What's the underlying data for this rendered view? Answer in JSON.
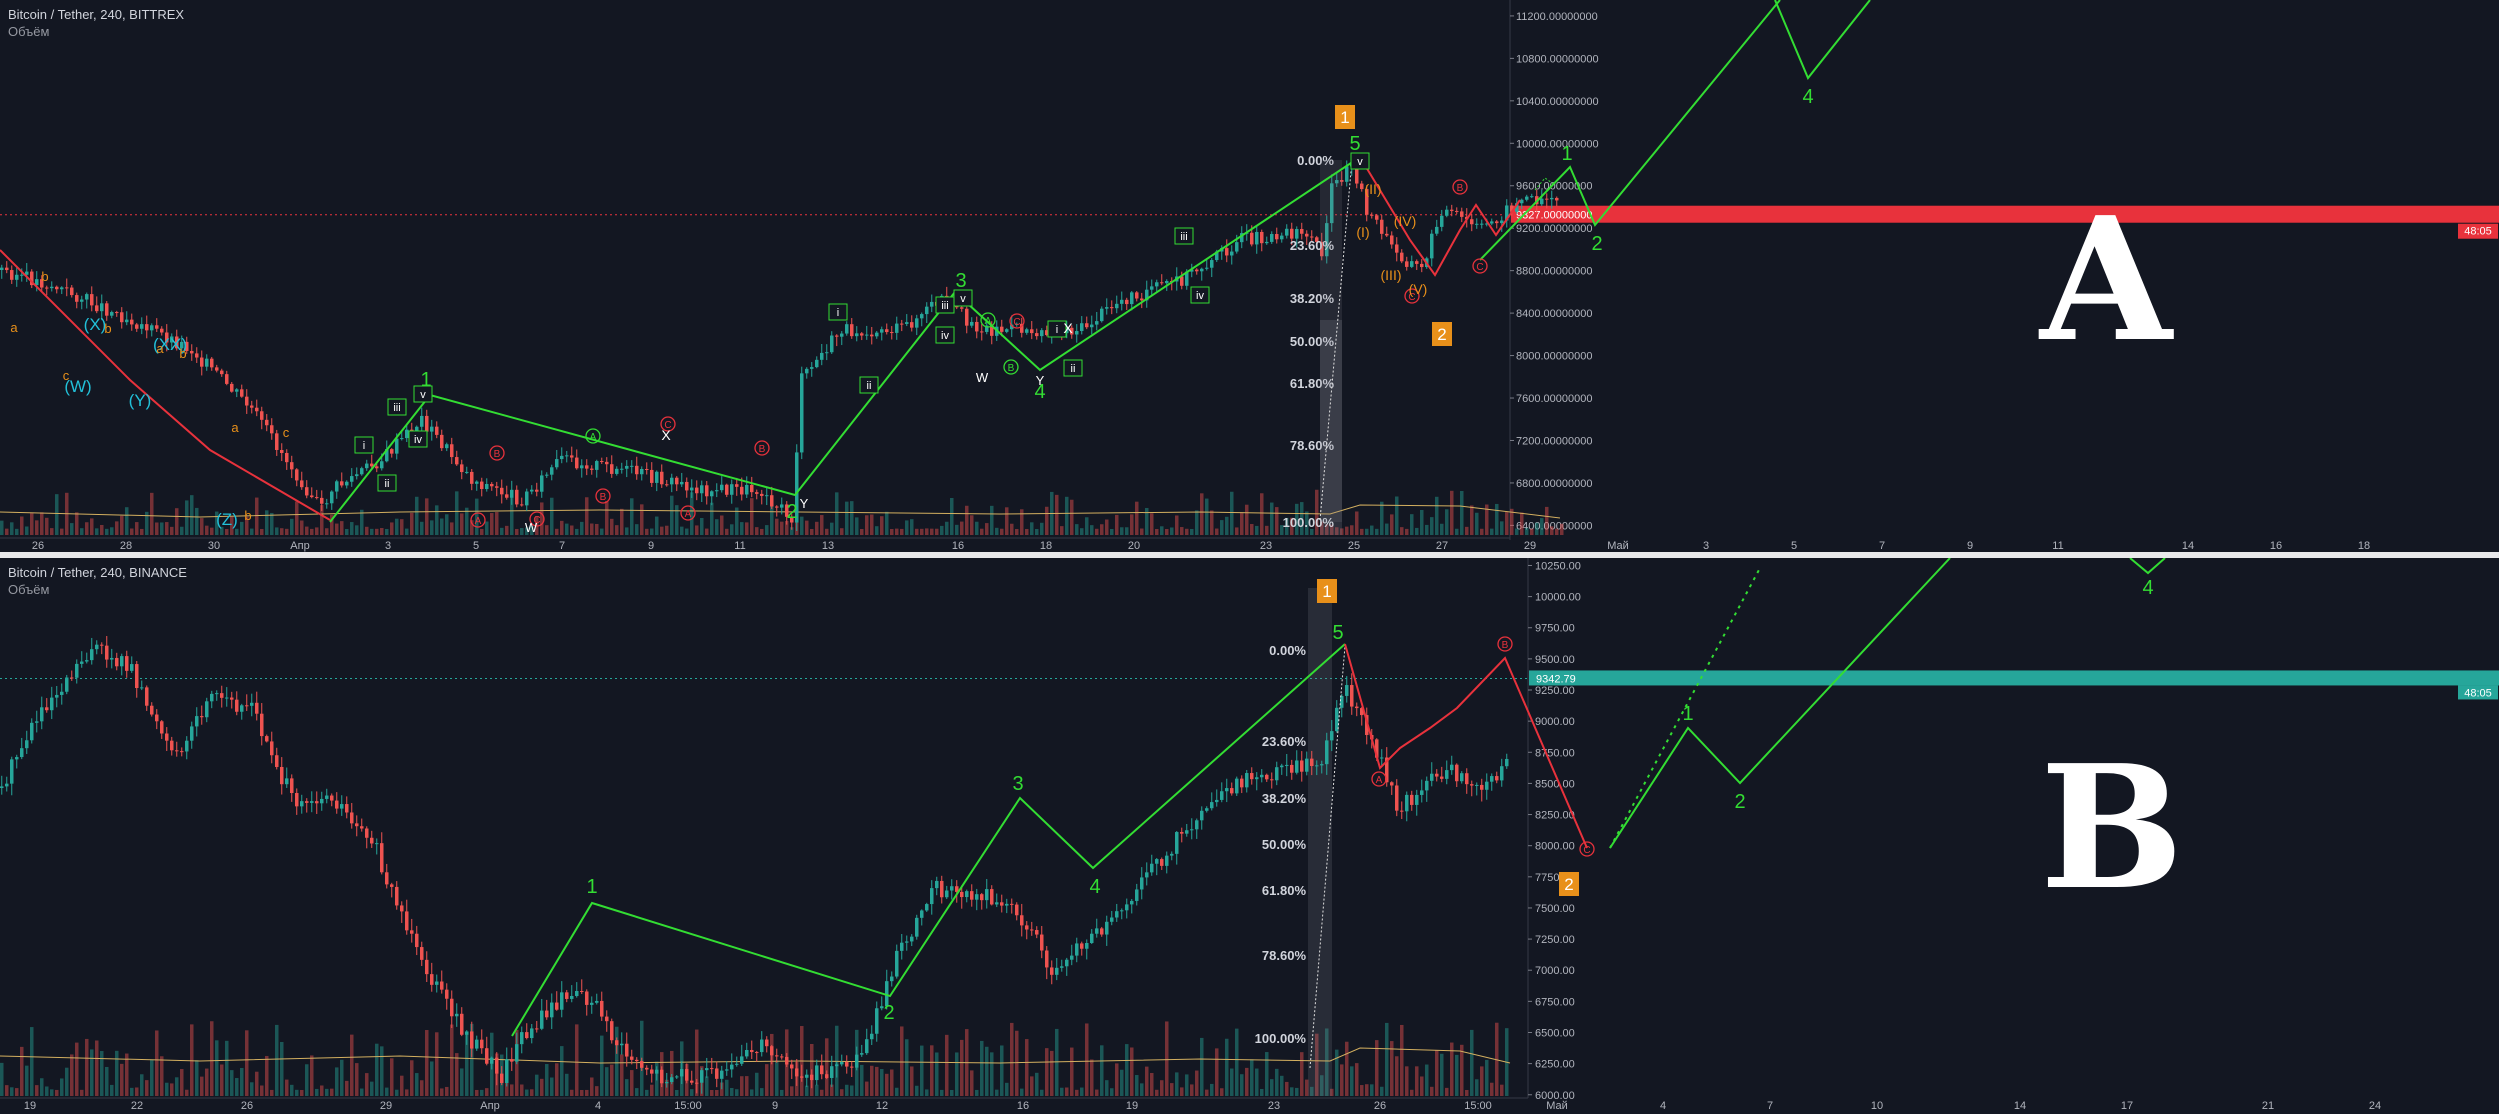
{
  "colors": {
    "background": "#131722",
    "up_candle": "#26a69a",
    "down_candle": "#ef5350",
    "wave_green": "#33dd33",
    "wave_red": "#e8323c",
    "wave_orange": "#e8901a",
    "wave_cyan": "#22c0d8",
    "ma_line": "#d4b060",
    "fib_label": "#d1d4dc",
    "box_orange": "#e8901a"
  },
  "charts": [
    {
      "id": "A",
      "legend_symbol": "Bitcoin / Tether, 240, BITTREX",
      "legend_volume": "Объём",
      "big_label": "A",
      "price_axis": [
        "11200.00000000",
        "10800.00000000",
        "10400.00000000",
        "10000.00000000",
        "9600.00000000",
        "9200.00000000",
        "8800.00000000",
        "8400.00000000",
        "8000.00000000",
        "7600.00000000",
        "7200.00000000",
        "6800.00000000",
        "6400.00000000"
      ],
      "last_price": "9327.00000000",
      "last_price_sub": "48:05",
      "time_axis": [
        "26",
        "28",
        "30",
        "Апр",
        "3",
        "5",
        "7",
        "9",
        "11",
        "13",
        "16",
        "18",
        "20",
        "23",
        "25",
        "27",
        "29",
        "Май",
        "3",
        "5",
        "7",
        "9",
        "11",
        "14",
        "16",
        "18"
      ],
      "fib_levels": [
        "0.00%",
        "23.60%",
        "38.20%",
        "50.00%",
        "61.80%",
        "78.60%",
        "100.00%"
      ],
      "wave_labels": {
        "impulse_1_box": "1",
        "correction_2_box": "2",
        "w1": "1",
        "w2": "2",
        "w3": "3",
        "w4": "4",
        "w5": "5",
        "proj_1": "1",
        "proj_2": "2",
        "proj_4": "4",
        "sub_i": "i",
        "sub_ii": "ii",
        "sub_iii": "iii",
        "sub_iv": "iv",
        "sub_v": "v",
        "cyan_X": "(X)",
        "cyan_XX": "(XX)",
        "cyan_W": "(W)",
        "cyan_Y": "(Y)",
        "cyan_Z": "(Z)",
        "orange_I": "(I)",
        "orange_II": "(II)",
        "orange_III": "(III)",
        "orange_IV": "(IV)",
        "orange_V": "(V)",
        "circ_A": "A",
        "circ_B": "B",
        "circ_C": "C",
        "W": "W",
        "X": "X",
        "Y": "Y",
        "sub_a": "a",
        "sub_b": "b",
        "sub_c": "c"
      },
      "chart_data": {
        "type": "candlestick",
        "symbol": "Bitcoin / Tether",
        "interval": "240",
        "exchange": "BITTREX",
        "ylim": [
          6300,
          11350
        ],
        "y_scale": "linear",
        "grid": false,
        "price_line": 9327,
        "trend_path": [
          {
            "x": "Mar 24",
            "y": 8850
          },
          {
            "x": "Apr 1",
            "y": 6450
          },
          {
            "x": "Apr 4",
            "y": 7580
          },
          {
            "x": "Apr 12",
            "y": 6650
          },
          {
            "x": "Apr 16",
            "y": 8400
          },
          {
            "x": "Apr 17",
            "y": 7650
          },
          {
            "x": "Apr 25",
            "y": 9750
          },
          {
            "x": "Apr 27",
            "y": 8550
          },
          {
            "x": "Apr 30",
            "y": 9650
          },
          {
            "x": "May 1",
            "y": 9150
          },
          {
            "x": "May 6",
            "y": 11300
          },
          {
            "x": "May 6",
            "y": 10500
          },
          {
            "x": "May 8",
            "y": 11300
          }
        ]
      }
    },
    {
      "id": "B",
      "legend_symbol": "Bitcoin / Tether, 240, BINANCE",
      "legend_volume": "Объём",
      "big_label": "B",
      "price_axis": [
        "10250.00",
        "10000.00",
        "9750.00",
        "9500.00",
        "9250.00",
        "9000.00",
        "8750.00",
        "8500.00",
        "8250.00",
        "8000.00",
        "7750.00",
        "7500.00",
        "7250.00",
        "7000.00",
        "6750.00",
        "6500.00",
        "6250.00",
        "6000.00"
      ],
      "last_price": "9342.79",
      "last_price_sub": "48:05",
      "time_axis": [
        "19",
        "22",
        "26",
        "29",
        "Апр",
        "4",
        "15:00",
        "9",
        "12",
        "16",
        "19",
        "23",
        "26",
        "15:00",
        "Май",
        "4",
        "7",
        "10",
        "14",
        "17",
        "21",
        "24"
      ],
      "fib_levels": [
        "0.00%",
        "23.60%",
        "38.20%",
        "50.00%",
        "61.80%",
        "78.60%",
        "100.00%"
      ],
      "wave_labels": {
        "impulse_1_box": "1",
        "correction_2_box": "2",
        "w1": "1",
        "w2": "2",
        "w3": "3",
        "w4": "4",
        "w5": "5",
        "proj_1": "1",
        "proj_2": "2",
        "proj_4": "4",
        "circ_A": "A",
        "circ_B": "B",
        "circ_C": "C"
      },
      "chart_data": {
        "type": "candlestick",
        "symbol": "Bitcoin / Tether",
        "interval": "240",
        "exchange": "BINANCE",
        "ylim": [
          5990,
          10310
        ],
        "y_scale": "linear",
        "grid": false,
        "price_line": 9342.79,
        "trend_path": [
          {
            "x": "Mar 17",
            "y": 7700
          },
          {
            "x": "Mar 21",
            "y": 9100
          },
          {
            "x": "Mar 28",
            "y": 8700
          },
          {
            "x": "Apr 2",
            "y": 6600
          },
          {
            "x": "Apr 4",
            "y": 7550
          },
          {
            "x": "Apr 12",
            "y": 6850
          },
          {
            "x": "Apr 15",
            "y": 8350
          },
          {
            "x": "Apr 18",
            "y": 7800
          },
          {
            "x": "Apr 25",
            "y": 9700
          },
          {
            "x": "Apr 26",
            "y": 8650
          },
          {
            "x": "Apr 29",
            "y": 9550
          },
          {
            "x": "May 1",
            "y": 7950
          },
          {
            "x": "May 5",
            "y": 8900
          },
          {
            "x": "May 6",
            "y": 8500
          },
          {
            "x": "May 12",
            "y": 10200
          }
        ]
      }
    }
  ]
}
